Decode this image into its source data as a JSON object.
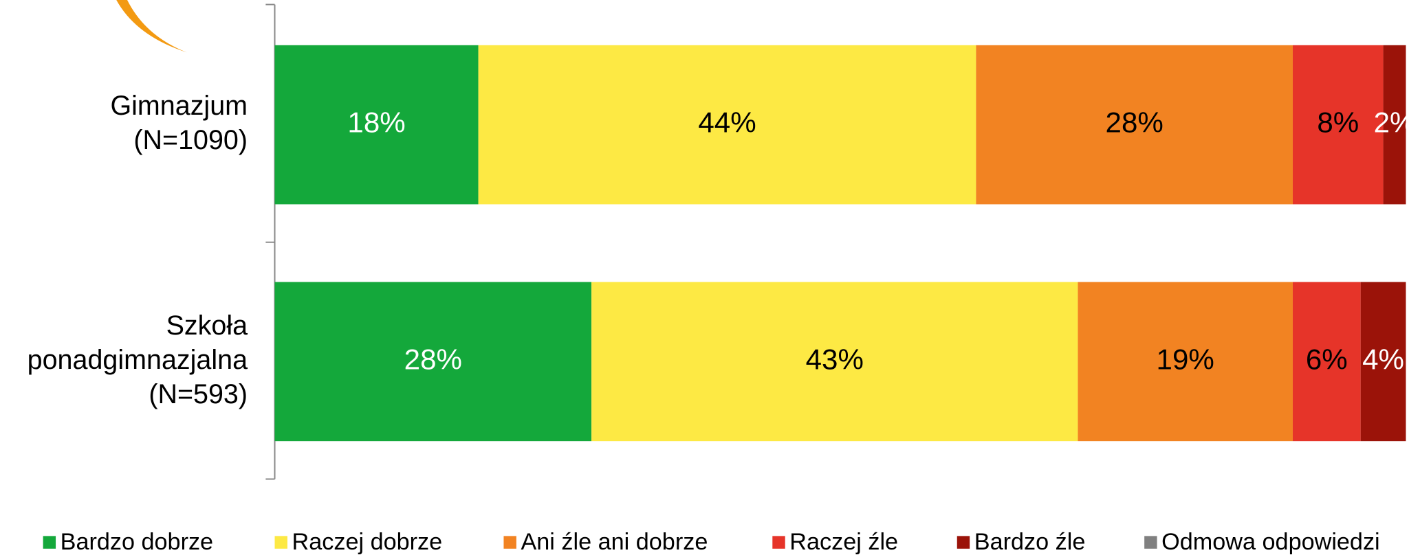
{
  "chart_data": {
    "type": "stacked_barh",
    "categories": [
      [
        "Gimnazjum",
        "(N=1090)"
      ],
      [
        "Szkoła",
        "ponadgimnazjalna",
        "(N=593)"
      ]
    ],
    "xlim": [
      0,
      100
    ],
    "series": [
      {
        "name": "Bardzo dobrze",
        "color": "#14a83b",
        "label_color": "#ffffff",
        "values": [
          18,
          28
        ],
        "value_labels": [
          "18%",
          "28%"
        ]
      },
      {
        "name": "Raczej dobrze",
        "color": "#fde944",
        "label_color": "#000000",
        "values": [
          44,
          43
        ],
        "value_labels": [
          "44%",
          "43%"
        ]
      },
      {
        "name": "Ani źle ani dobrze",
        "color": "#f28322",
        "label_color": "#000000",
        "values": [
          28,
          19
        ],
        "value_labels": [
          "28%",
          "19%"
        ]
      },
      {
        "name": "Raczej źle",
        "color": "#e63429",
        "label_color": "#000000",
        "values": [
          8,
          6
        ],
        "value_labels": [
          "8%",
          "6%"
        ]
      },
      {
        "name": "Bardzo źle",
        "color": "#9b1309",
        "label_color": "#ffffff",
        "values": [
          2,
          4
        ],
        "value_labels": [
          "2%",
          "4%"
        ]
      },
      {
        "name": "Odmowa odpowiedzi",
        "color": "#808080",
        "values": [
          0,
          0
        ]
      }
    ],
    "legend": "bottom"
  }
}
